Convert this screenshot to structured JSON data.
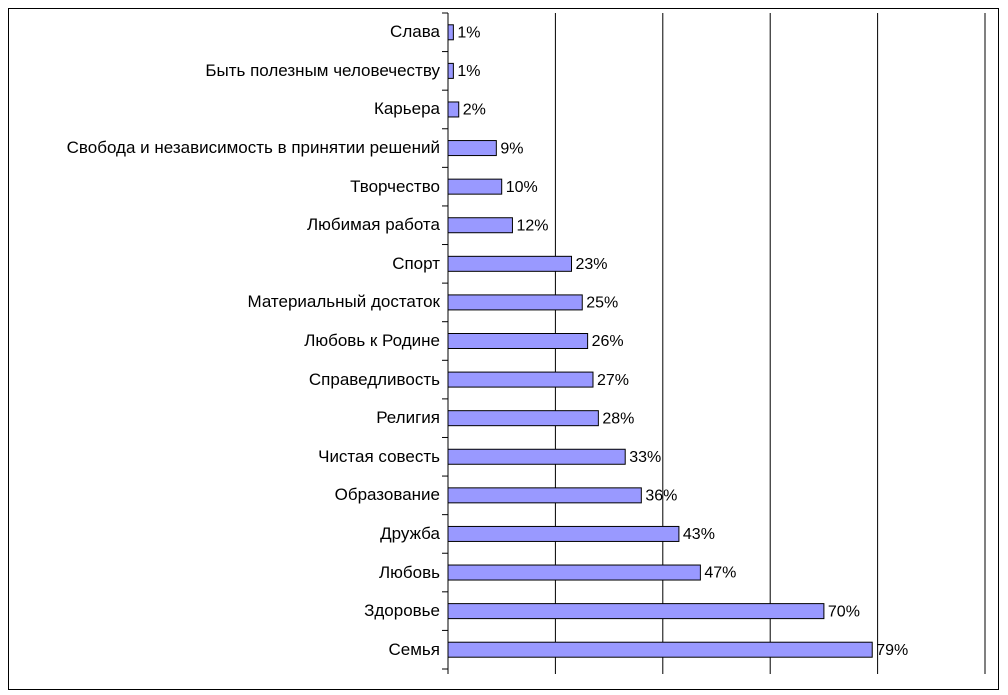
{
  "chart_data": {
    "type": "bar",
    "orientation": "horizontal",
    "categories": [
      "Слава",
      "Быть полезным человечеству",
      "Карьера",
      "Свобода и независимость в принятии решений",
      "Творчество",
      "Любимая работа",
      "Спорт",
      "Материальный достаток",
      "Любовь к Родине",
      "Справедливость",
      "Религия",
      "Чистая совесть",
      "Образование",
      "Дружба",
      "Любовь",
      "Здоровье",
      "Семья"
    ],
    "values": [
      1,
      1,
      2,
      9,
      10,
      12,
      23,
      25,
      26,
      27,
      28,
      33,
      36,
      43,
      47,
      70,
      79
    ],
    "value_labels": [
      "1%",
      "1%",
      "2%",
      "9%",
      "10%",
      "12%",
      "23%",
      "25%",
      "26%",
      "27%",
      "28%",
      "33%",
      "36%",
      "43%",
      "47%",
      "70%",
      "79%"
    ],
    "color": "#9999ff",
    "xlim": [
      0,
      100
    ],
    "xticks": [
      0,
      20,
      40,
      60,
      80,
      100
    ],
    "grid": true
  }
}
